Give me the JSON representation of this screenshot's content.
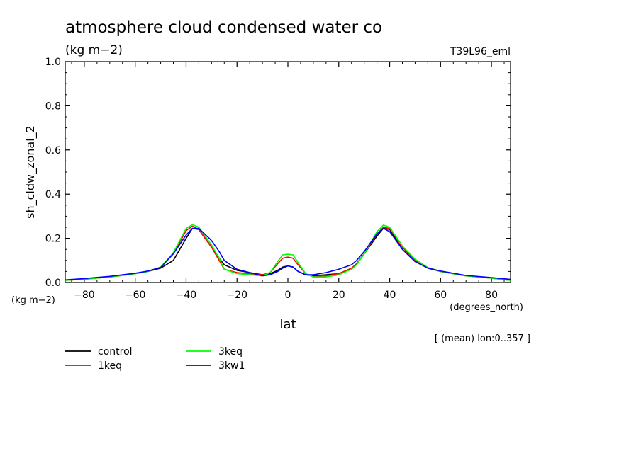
{
  "chart_data": {
    "type": "line",
    "title": "atmosphere cloud condensed water co",
    "subtitle": "(kg m−2)",
    "run_label": "T39L96_eml",
    "xlabel": "lat",
    "xunits": "(degrees_north)",
    "ylabel": "sh_cldw_zonal_2",
    "yunits": "(kg m−2)",
    "note": "[ (mean) lon:0..357 ]",
    "xlim": [
      -87.5,
      87.5
    ],
    "ylim": [
      0,
      1.0
    ],
    "xticks": [
      -80,
      -60,
      -40,
      -20,
      0,
      20,
      40,
      60,
      80
    ],
    "xtick_labels": [
      "−80",
      "−60",
      "−40",
      "−20",
      "0",
      "20",
      "40",
      "60",
      "80"
    ],
    "yticks": [
      0,
      0.2,
      0.4,
      0.6,
      0.8,
      1.0
    ],
    "ytick_labels": [
      "0.0",
      "0.2",
      "0.4",
      "0.6",
      "0.8",
      "1.0"
    ],
    "grid": false,
    "legend_position": "bottom-left",
    "x": [
      -87.5,
      -80,
      -70,
      -60,
      -55,
      -50,
      -45,
      -40,
      -37.5,
      -35,
      -30,
      -27,
      -25,
      -20,
      -15,
      -10,
      -7,
      -4,
      -2,
      0,
      2,
      4,
      7,
      10,
      15,
      20,
      25,
      27,
      30,
      35,
      37.5,
      40,
      45,
      50,
      55,
      60,
      70,
      80,
      87.5
    ],
    "series": [
      {
        "name": "control",
        "color": "#000000",
        "values": [
          0.01,
          0.015,
          0.025,
          0.04,
          0.05,
          0.065,
          0.1,
          0.2,
          0.245,
          0.24,
          0.16,
          0.11,
          0.08,
          0.055,
          0.045,
          0.035,
          0.04,
          0.055,
          0.07,
          0.075,
          0.07,
          0.05,
          0.035,
          0.03,
          0.035,
          0.04,
          0.06,
          0.085,
          0.13,
          0.21,
          0.245,
          0.24,
          0.15,
          0.095,
          0.065,
          0.05,
          0.03,
          0.02,
          0.01
        ]
      },
      {
        "name": "1keq",
        "color": "#ff0000",
        "values": [
          0.01,
          0.015,
          0.025,
          0.04,
          0.05,
          0.07,
          0.13,
          0.235,
          0.255,
          0.24,
          0.16,
          0.1,
          0.06,
          0.045,
          0.04,
          0.035,
          0.045,
          0.085,
          0.11,
          0.115,
          0.11,
          0.08,
          0.04,
          0.025,
          0.03,
          0.04,
          0.065,
          0.085,
          0.13,
          0.22,
          0.25,
          0.245,
          0.16,
          0.1,
          0.065,
          0.05,
          0.03,
          0.02,
          0.01
        ]
      },
      {
        "name": "3keq",
        "color": "#00ff00",
        "values": [
          0.01,
          0.015,
          0.025,
          0.04,
          0.05,
          0.07,
          0.135,
          0.245,
          0.262,
          0.25,
          0.17,
          0.11,
          0.06,
          0.04,
          0.035,
          0.03,
          0.045,
          0.095,
          0.125,
          0.128,
          0.125,
          0.09,
          0.04,
          0.025,
          0.025,
          0.035,
          0.06,
          0.08,
          0.13,
          0.23,
          0.26,
          0.25,
          0.165,
          0.105,
          0.068,
          0.05,
          0.03,
          0.02,
          0.01
        ]
      },
      {
        "name": "3kw1",
        "color": "#0000ff",
        "values": [
          0.012,
          0.018,
          0.028,
          0.042,
          0.052,
          0.068,
          0.13,
          0.215,
          0.245,
          0.245,
          0.19,
          0.14,
          0.1,
          0.06,
          0.045,
          0.03,
          0.035,
          0.05,
          0.065,
          0.075,
          0.07,
          0.05,
          0.035,
          0.035,
          0.045,
          0.06,
          0.08,
          0.1,
          0.14,
          0.22,
          0.245,
          0.23,
          0.15,
          0.095,
          0.065,
          0.052,
          0.032,
          0.022,
          0.014
        ]
      }
    ]
  }
}
